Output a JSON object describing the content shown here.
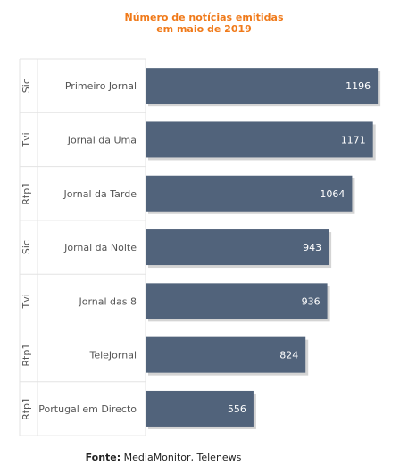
{
  "chart_data": {
    "type": "bar",
    "orientation": "horizontal",
    "title_line1": "Número de notícias emitidas",
    "title_line2": "em maio de 2019",
    "groups": [
      "Sic",
      "Tvi",
      "Rtp1",
      "Sic",
      "Tvi",
      "Rtp1",
      "Rtp1"
    ],
    "categories": [
      "Primeiro Jornal",
      "Jornal da Uma",
      "Jornal da Tarde",
      "Jornal da Noite",
      "Jornal das 8",
      "TeleJornal",
      "Portugal em Directo"
    ],
    "values": [
      1196,
      1171,
      1064,
      943,
      936,
      824,
      556
    ],
    "xlim": [
      0,
      1250
    ],
    "grid": false,
    "legend": "none"
  },
  "footer": {
    "label": "Fonte:",
    "text": " MediaMonitor, Telenews"
  },
  "colors": {
    "title": "#f07a1a",
    "bar": "#51637b",
    "bar_shadow": "#d4d4d4",
    "value_label": "#ffffff",
    "category_label": "#555555",
    "gridline": "#e3e3e3"
  }
}
